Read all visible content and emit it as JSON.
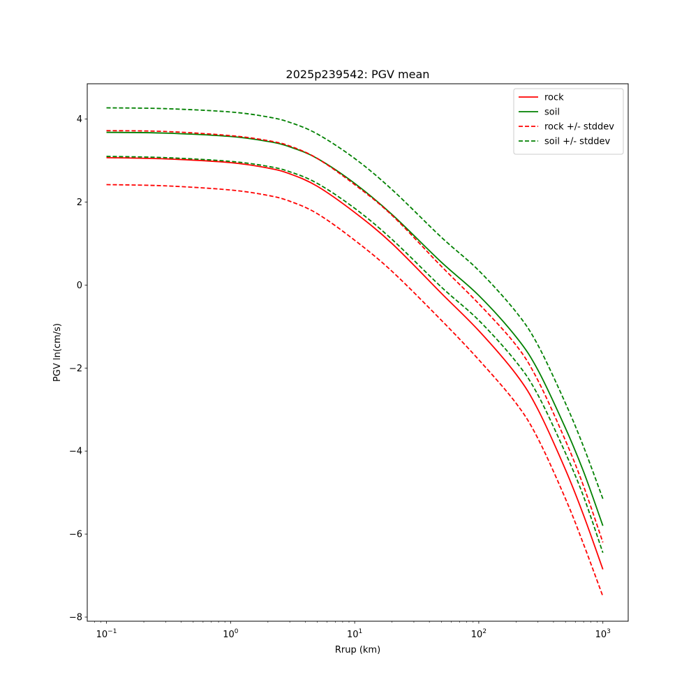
{
  "chart_data": {
    "type": "line",
    "title": "2025p239542: PGV mean",
    "xlabel": "Rrup (km)",
    "ylabel": "PGV ln(cm/s)",
    "xscale": "log",
    "xlim": [
      0.07,
      1600
    ],
    "ylim": [
      -8.1,
      4.85
    ],
    "xticks": [
      {
        "value": 0.1,
        "base": "10",
        "exp": "−1"
      },
      {
        "value": 1,
        "base": "10",
        "exp": "0"
      },
      {
        "value": 10,
        "base": "10",
        "exp": "1"
      },
      {
        "value": 100,
        "base": "10",
        "exp": "2"
      },
      {
        "value": 1000,
        "base": "10",
        "exp": "3"
      }
    ],
    "yticks": [
      {
        "value": 4,
        "label": "4"
      },
      {
        "value": 2,
        "label": "2"
      },
      {
        "value": 0,
        "label": "0"
      },
      {
        "value": -2,
        "label": "−2"
      },
      {
        "value": -4,
        "label": "−4"
      },
      {
        "value": -6,
        "label": "−6"
      },
      {
        "value": -8,
        "label": "−8"
      }
    ],
    "grid": false,
    "legend_position": "top-right",
    "legend": [
      {
        "label": "rock",
        "color": "#ff0000",
        "style": "solid"
      },
      {
        "label": "soil",
        "color": "#008000",
        "style": "solid"
      },
      {
        "label": "rock +/- stddev",
        "color": "#ff0000",
        "style": "dashed"
      },
      {
        "label": "soil +/- stddev",
        "color": "#008000",
        "style": "dashed"
      }
    ],
    "x": [
      0.1,
      0.3,
      1,
      2,
      3,
      5,
      10,
      20,
      50,
      100,
      200,
      300,
      500,
      700,
      1000
    ],
    "series": [
      {
        "name": "rock",
        "color": "#ff0000",
        "style": "solid",
        "values": [
          3.07,
          3.04,
          2.95,
          2.82,
          2.68,
          2.38,
          1.75,
          1.0,
          -0.2,
          -1.1,
          -2.15,
          -3.0,
          -4.45,
          -5.55,
          -6.85
        ]
      },
      {
        "name": "soil",
        "color": "#008000",
        "style": "solid",
        "values": [
          3.68,
          3.66,
          3.58,
          3.46,
          3.33,
          3.05,
          2.45,
          1.7,
          0.55,
          -0.25,
          -1.25,
          -2.05,
          -3.45,
          -4.5,
          -5.8
        ]
      },
      {
        "name": "rock +/- stddev",
        "color": "#ff0000",
        "style": "dashed",
        "values": [
          3.72,
          3.7,
          3.6,
          3.48,
          3.35,
          3.05,
          2.42,
          1.68,
          0.45,
          -0.45,
          -1.45,
          -2.3,
          -3.75,
          -4.85,
          -6.2
        ]
      },
      {
        "name": "rock +/- stddev",
        "color": "#ff0000",
        "style": "dashed",
        "values": [
          2.42,
          2.39,
          2.29,
          2.16,
          2.02,
          1.72,
          1.08,
          0.33,
          -0.85,
          -1.8,
          -2.85,
          -3.7,
          -5.15,
          -6.25,
          -7.5
        ]
      },
      {
        "name": "soil +/- stddev",
        "color": "#008000",
        "style": "dashed",
        "values": [
          4.27,
          4.25,
          4.17,
          4.05,
          3.92,
          3.64,
          3.05,
          2.3,
          1.15,
          0.35,
          -0.65,
          -1.45,
          -2.85,
          -3.9,
          -5.15
        ]
      },
      {
        "name": "soil +/- stddev",
        "color": "#008000",
        "style": "dashed",
        "values": [
          3.1,
          3.07,
          2.98,
          2.86,
          2.73,
          2.45,
          1.85,
          1.1,
          -0.05,
          -0.85,
          -1.85,
          -2.65,
          -4.05,
          -5.1,
          -6.45
        ]
      }
    ]
  }
}
